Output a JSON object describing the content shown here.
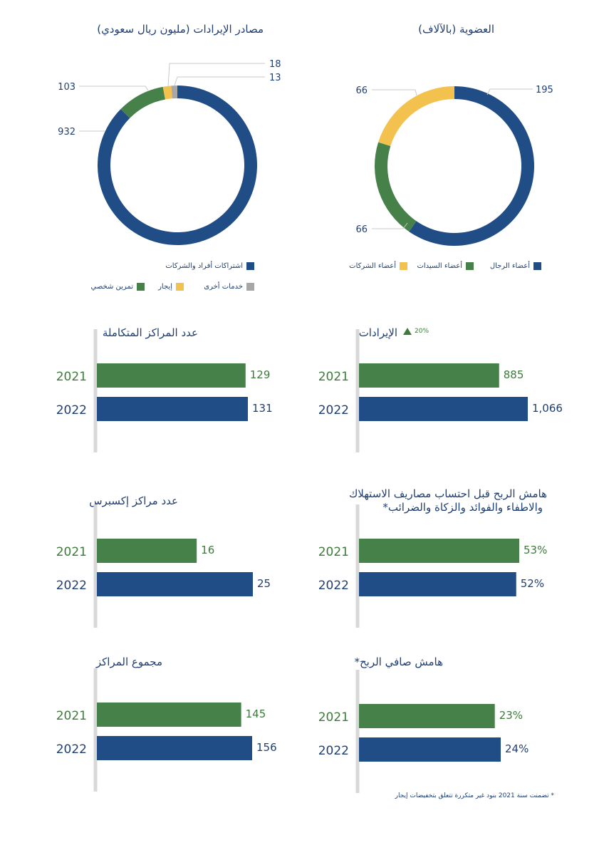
{
  "colors": {
    "blue": "#214d86",
    "green": "#46814a",
    "yellow": "#f2c14e",
    "gray": "#a7a7a7",
    "text_blue": "#1f3f73",
    "text_green": "#3d7a3b",
    "axis": "#d8d8d8"
  },
  "chart_data": [
    {
      "id": "revenue_sources",
      "type": "pie",
      "title": "مصادر الإيرادات (مليون ريال سعودي)",
      "slices": [
        {
          "label": "اشتراكات أفراد والشركات",
          "value": 932,
          "color": "#214d86"
        },
        {
          "label": "تمرين شخصي",
          "value": 103,
          "color": "#46814a"
        },
        {
          "label": "إيجار",
          "value": 18,
          "color": "#f2c14e"
        },
        {
          "label": "خدمات أخرى",
          "value": 13,
          "color": "#a7a7a7"
        }
      ],
      "legend_rows": [
        [
          "اشتراكات أفراد والشركات"
        ],
        [
          "خدمات أخرى",
          "إيجار",
          "تمرين شخصي"
        ]
      ]
    },
    {
      "id": "membership",
      "type": "pie",
      "title": "العضوية (بالآلاف)",
      "slices": [
        {
          "label": "أعضاء الرجال",
          "value": 195,
          "color": "#214d86"
        },
        {
          "label": "أعضاء السيدات",
          "value": 66,
          "color": "#46814a"
        },
        {
          "label": "أعضاء الشركات",
          "value": 66,
          "color": "#f2c14e"
        }
      ]
    },
    {
      "id": "integrated_centers",
      "type": "bar",
      "title": "عدد المراكز المتكاملة",
      "categories": [
        "2021",
        "2022"
      ],
      "values": [
        129,
        131
      ],
      "value_labels": [
        "129",
        "131"
      ]
    },
    {
      "id": "revenues",
      "type": "bar",
      "title": "الإيرادات",
      "change": "20%",
      "categories": [
        "2021",
        "2022"
      ],
      "values": [
        885,
        1066
      ],
      "value_labels": [
        "885",
        "1,066"
      ]
    },
    {
      "id": "express_centers",
      "type": "bar",
      "title": "عدد مراكز إكسبرس",
      "categories": [
        "2021",
        "2022"
      ],
      "values": [
        16,
        25
      ],
      "value_labels": [
        "16",
        "25"
      ]
    },
    {
      "id": "ebitda_margin",
      "type": "bar",
      "title_lines": [
        "هامش الربح قبل احتساب مصاريف الاستهلاك",
        "والاطفاء والفوائد والزكاة والضرائب*"
      ],
      "categories": [
        "2021",
        "2022"
      ],
      "values": [
        53,
        52
      ],
      "value_labels": [
        "53%",
        "52%"
      ]
    },
    {
      "id": "total_centers",
      "type": "bar",
      "title": "مجموع المراكز",
      "categories": [
        "2021",
        "2022"
      ],
      "values": [
        145,
        156
      ],
      "value_labels": [
        "145",
        "156"
      ]
    },
    {
      "id": "net_margin",
      "type": "bar",
      "title": "هامش صافي الربح*",
      "categories": [
        "2021",
        "2022"
      ],
      "values": [
        23,
        24
      ],
      "value_labels": [
        "23%",
        "24%"
      ]
    }
  ],
  "footnote": "* تضمنت سنة 2021 بنود غير متكررة تتعلق بتخفيضات إيجار"
}
